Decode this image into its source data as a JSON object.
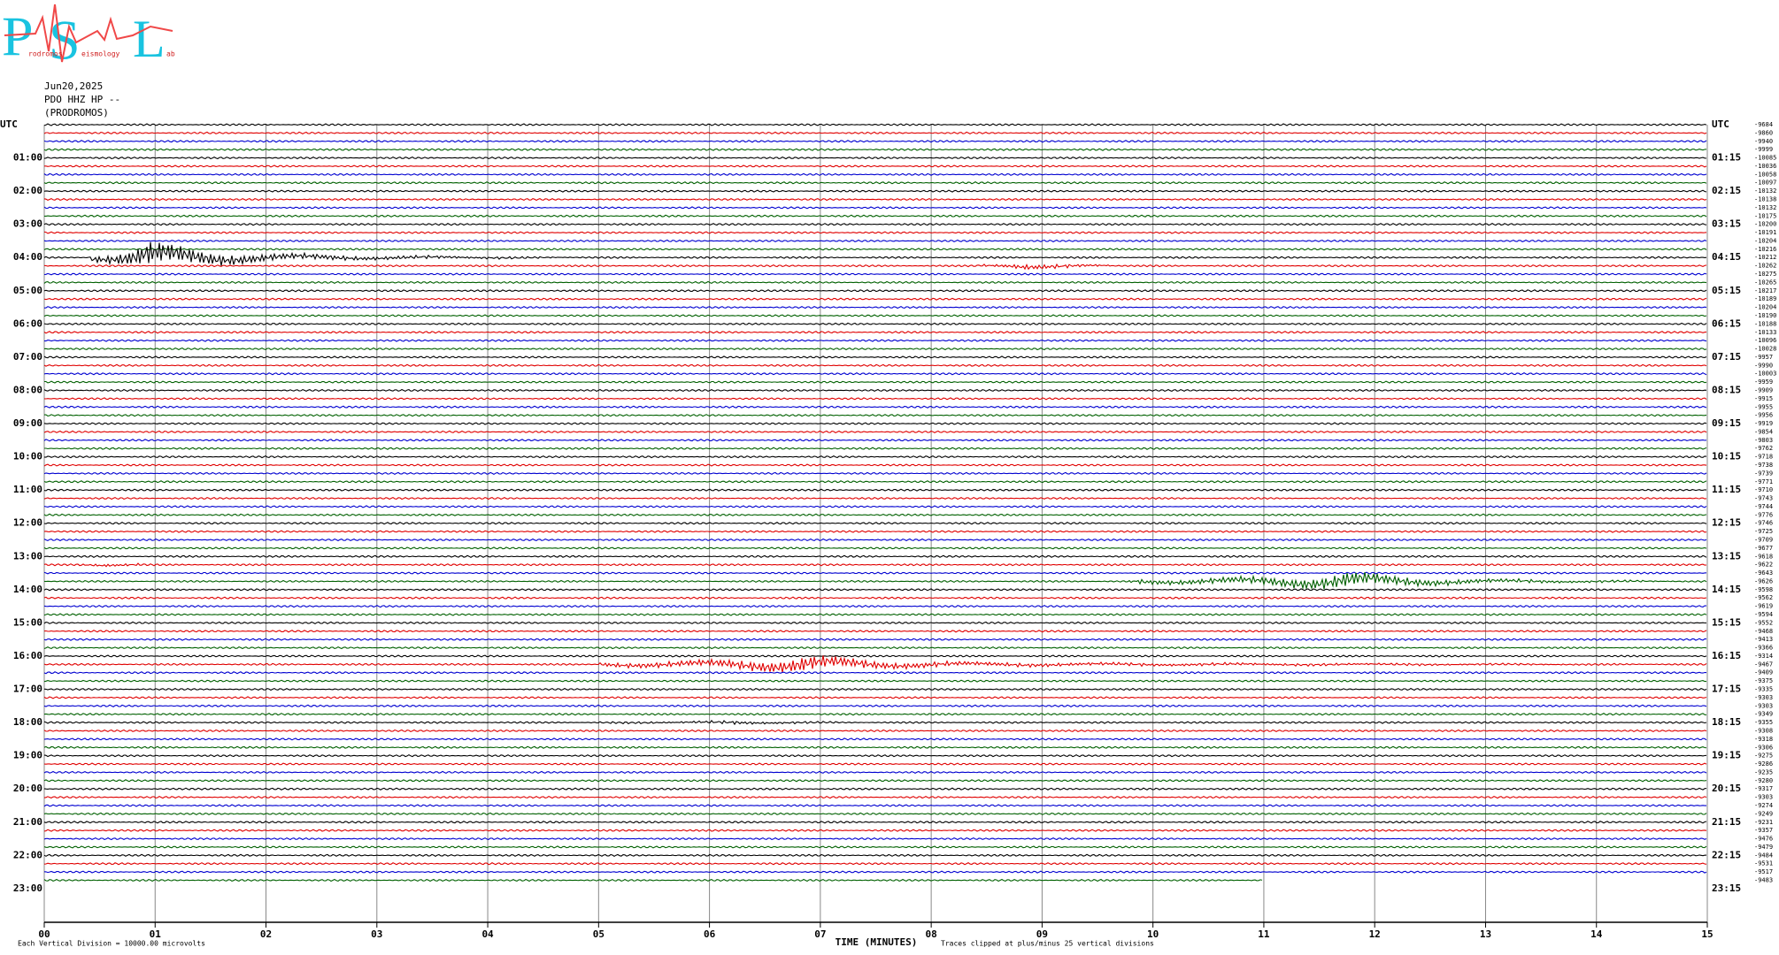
{
  "header": {
    "logo": {
      "letters": [
        "P",
        "S",
        "L"
      ],
      "small": [
        "rodromos",
        "eismology",
        "ab"
      ]
    },
    "date": "Jun20,2025",
    "station": "PDO HHZ HP --",
    "site": "(PRODROMOS)"
  },
  "chart_data": {
    "type": "helicorder",
    "left_labels": [
      "UTC",
      "01:00",
      "02:00",
      "03:00",
      "04:00",
      "05:00",
      "06:00",
      "07:00",
      "08:00",
      "09:00",
      "10:00",
      "11:00",
      "12:00",
      "13:00",
      "14:00",
      "15:00",
      "16:00",
      "17:00",
      "18:00",
      "19:00",
      "20:00",
      "21:00",
      "22:00",
      "23:00"
    ],
    "right_labels": [
      "UTC",
      "01:15",
      "02:15",
      "03:15",
      "04:15",
      "05:15",
      "06:15",
      "07:15",
      "08:15",
      "09:15",
      "10:15",
      "11:15",
      "12:15",
      "13:15",
      "14:15",
      "15:15",
      "16:15",
      "17:15",
      "18:15",
      "19:15",
      "20:15",
      "21:15",
      "22:15",
      "23:15"
    ],
    "trace_offsets": [
      -9684,
      -9860,
      -9940,
      -9999,
      -10085,
      -10036,
      -10058,
      -10097,
      -10132,
      -10138,
      -10132,
      -10175,
      -10200,
      -10191,
      -10204,
      -10216,
      -10212,
      -10262,
      -10275,
      -10265,
      -10217,
      -10189,
      -10204,
      -10190,
      -10188,
      -10133,
      -10096,
      -10028,
      -9957,
      -9990,
      -10003,
      -9959,
      -9909,
      -9915,
      -9955,
      -9956,
      -9919,
      -9854,
      -9803,
      -9762,
      -9718,
      -9738,
      -9739,
      -9771,
      -9710,
      -9743,
      -9744,
      -9776,
      -9746,
      -9725,
      -9709,
      -9677,
      -9618,
      -9622,
      -9643,
      -9626,
      -9598,
      -9562,
      -9619,
      -9594,
      -9552,
      -9468,
      -9413,
      -9366,
      -9314,
      -9467,
      -9409,
      -9375,
      -9335,
      -9303,
      -9303,
      -9349,
      -9355,
      -9308,
      -9318,
      -9306,
      -9275,
      -9286,
      -9235,
      -9280,
      -9317,
      -9303,
      -9274,
      -9249,
      -9231,
      -9357,
      -9476,
      -9479,
      -9484,
      -9531,
      -9517,
      -9483
    ],
    "trace_colors": [
      "#000000",
      "#e00000",
      "#0000d0",
      "#006000"
    ],
    "xlim": [
      0,
      15
    ],
    "xticks": [
      {
        "value": 0,
        "label": "00"
      },
      {
        "value": 1,
        "label": "01"
      },
      {
        "value": 2,
        "label": "02"
      },
      {
        "value": 3,
        "label": "03"
      },
      {
        "value": 4,
        "label": "04"
      },
      {
        "value": 5,
        "label": "05"
      },
      {
        "value": 6,
        "label": "06"
      },
      {
        "value": 7,
        "label": "07"
      },
      {
        "value": 8,
        "label": "08"
      },
      {
        "value": 9,
        "label": "09"
      },
      {
        "value": 10,
        "label": "10"
      },
      {
        "value": 11,
        "label": "11"
      },
      {
        "value": 12,
        "label": "12"
      },
      {
        "value": 13,
        "label": "13"
      },
      {
        "value": 14,
        "label": "14"
      },
      {
        "value": 15,
        "label": "15"
      }
    ],
    "x_label": "TIME (MINUTES)",
    "footer_left": "Each Vertical Division = 10000.00 microvolts",
    "footer_right": "Traces clipped at plus/minus 25 vertical divisions"
  }
}
